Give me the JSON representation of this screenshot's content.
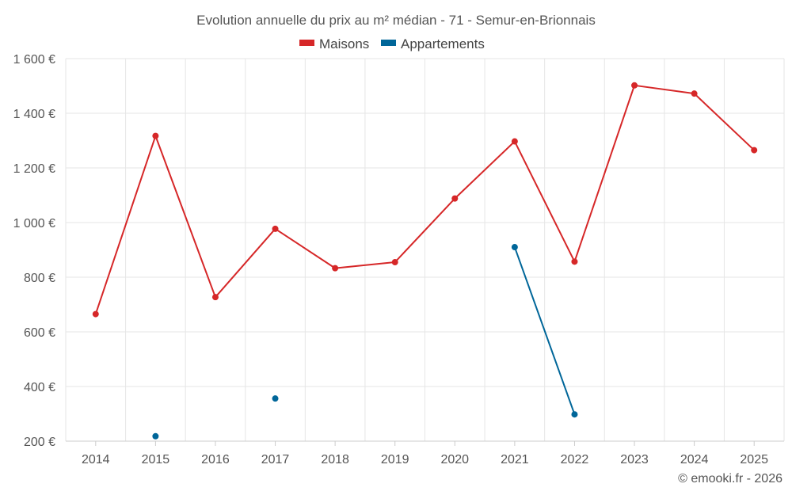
{
  "chart_data": {
    "type": "line",
    "title": "Evolution annuelle du prix au m² médian - 71 - Semur-en-Brionnais",
    "categories": [
      "2014",
      "2015",
      "2016",
      "2017",
      "2018",
      "2019",
      "2020",
      "2021",
      "2022",
      "2023",
      "2024",
      "2025"
    ],
    "series": [
      {
        "name": "Maisons",
        "color": "#d62728",
        "values": [
          665,
          1317,
          727,
          977,
          833,
          855,
          1088,
          1297,
          857,
          1502,
          1472,
          1265
        ]
      },
      {
        "name": "Appartements",
        "color": "#006699",
        "values": [
          null,
          218,
          null,
          356,
          null,
          null,
          null,
          910,
          298,
          null,
          null,
          null
        ]
      }
    ],
    "y_ticks": [
      200,
      400,
      600,
      800,
      1000,
      1200,
      1400,
      1600
    ],
    "y_tick_labels": [
      "200 €",
      "400 €",
      "600 €",
      "800 €",
      "1 000 €",
      "1 200 €",
      "1 400 €",
      "1 600 €"
    ],
    "ylim": [
      200,
      1600
    ],
    "xlabel": "",
    "ylabel": "",
    "grid": true,
    "legend_position": "top-center"
  },
  "credit": "© emooki.fr - 2026"
}
